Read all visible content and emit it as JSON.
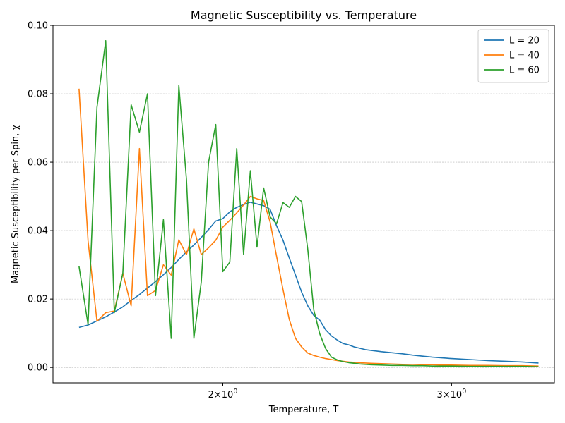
{
  "chart_data": {
    "type": "line",
    "title": "Magnetic Susceptibility vs. Temperature",
    "xlabel": "Temperature, T",
    "ylabel": "Magnetic Susceptibility per Spin, χ",
    "xscale": "log",
    "xlim": [
      1.48,
      3.6
    ],
    "ylim": [
      -0.0045,
      0.1
    ],
    "xticks": [
      {
        "value": 2,
        "base": "2",
        "mant": "×10",
        "exp": "0"
      },
      {
        "value": 3,
        "base": "3",
        "mant": "×10",
        "exp": "0"
      }
    ],
    "yticks": [
      {
        "value": 0.0,
        "label": "0.00"
      },
      {
        "value": 0.02,
        "label": "0.02"
      },
      {
        "value": 0.04,
        "label": "0.04"
      },
      {
        "value": 0.06,
        "label": "0.06"
      },
      {
        "value": 0.08,
        "label": "0.08"
      },
      {
        "value": 0.1,
        "label": "0.10"
      }
    ],
    "grid": "y-dashed",
    "legend_position": "top-right",
    "x": [
      1.55,
      1.575,
      1.6,
      1.625,
      1.65,
      1.675,
      1.7,
      1.725,
      1.75,
      1.775,
      1.8,
      1.825,
      1.85,
      1.875,
      1.9,
      1.925,
      1.95,
      1.975,
      2.0,
      2.025,
      2.05,
      2.075,
      2.1,
      2.125,
      2.15,
      2.175,
      2.2,
      2.225,
      2.25,
      2.275,
      2.3,
      2.325,
      2.35,
      2.375,
      2.4,
      2.425,
      2.45,
      2.475,
      2.5,
      2.525,
      2.55,
      2.575,
      2.6,
      2.65,
      2.7,
      2.75,
      2.8,
      2.85,
      2.9,
      2.95,
      3.0,
      3.1,
      3.2,
      3.3,
      3.4,
      3.5
    ],
    "series": [
      {
        "name": "L = 20",
        "color": "#1f77b4",
        "values": [
          0.0117,
          0.0124,
          0.0136,
          0.0148,
          0.0162,
          0.0177,
          0.0196,
          0.0213,
          0.0232,
          0.0251,
          0.0271,
          0.0292,
          0.0316,
          0.0338,
          0.0358,
          0.038,
          0.0403,
          0.0428,
          0.0435,
          0.0455,
          0.0468,
          0.0476,
          0.0483,
          0.0478,
          0.0473,
          0.0462,
          0.0414,
          0.0372,
          0.032,
          0.027,
          0.022,
          0.018,
          0.0152,
          0.0138,
          0.011,
          0.0092,
          0.008,
          0.007,
          0.0066,
          0.006,
          0.0056,
          0.0052,
          0.005,
          0.0046,
          0.0043,
          0.004,
          0.0036,
          0.0033,
          0.003,
          0.0028,
          0.0026,
          0.0023,
          0.002,
          0.0018,
          0.0016,
          0.0013
        ]
      },
      {
        "name": "L = 40",
        "color": "#ff7f0e",
        "values": [
          0.0815,
          0.037,
          0.0135,
          0.016,
          0.0165,
          0.0275,
          0.018,
          0.064,
          0.021,
          0.0225,
          0.03,
          0.027,
          0.0373,
          0.033,
          0.0405,
          0.033,
          0.035,
          0.0372,
          0.041,
          0.043,
          0.0452,
          0.0475,
          0.05,
          0.0493,
          0.0488,
          0.0425,
          0.0325,
          0.0228,
          0.014,
          0.0085,
          0.006,
          0.0042,
          0.0035,
          0.003,
          0.0026,
          0.0023,
          0.002,
          0.0018,
          0.0016,
          0.0015,
          0.0014,
          0.0013,
          0.0012,
          0.0011,
          0.001,
          0.0009,
          0.0009,
          0.0008,
          0.0008,
          0.0007,
          0.0007,
          0.0006,
          0.0006,
          0.0005,
          0.0005,
          0.0004
        ]
      },
      {
        "name": "L = 60",
        "color": "#2ca02c",
        "values": [
          0.0295,
          0.0125,
          0.076,
          0.0955,
          0.016,
          0.0275,
          0.0768,
          0.0688,
          0.08,
          0.021,
          0.0432,
          0.0085,
          0.0825,
          0.055,
          0.0085,
          0.025,
          0.06,
          0.071,
          0.028,
          0.0308,
          0.064,
          0.033,
          0.0575,
          0.0352,
          0.0525,
          0.044,
          0.042,
          0.0482,
          0.0468,
          0.05,
          0.0485,
          0.0345,
          0.0168,
          0.0098,
          0.0055,
          0.003,
          0.0022,
          0.0017,
          0.0014,
          0.0012,
          0.001,
          0.0009,
          0.0008,
          0.0007,
          0.0006,
          0.0006,
          0.0005,
          0.0005,
          0.0004,
          0.0004,
          0.0004,
          0.0003,
          0.0003,
          0.0003,
          0.0003,
          0.0002
        ]
      }
    ]
  }
}
